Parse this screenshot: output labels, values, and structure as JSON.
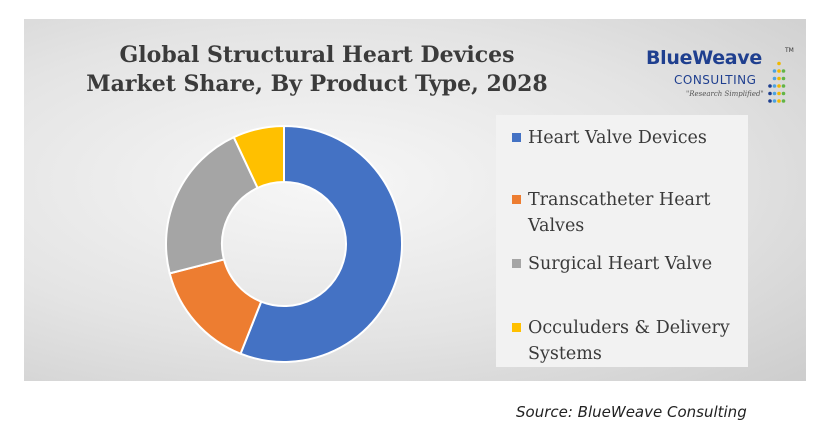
{
  "chart_data": {
    "type": "pie",
    "variant": "donut",
    "title_lines": [
      "Global Structural Heart Devices",
      "Market Share, By Product Type, 2028"
    ],
    "categories": [
      "Heart Valve Devices",
      "Transcatheter Heart Valves",
      "Surgical Heart Valve",
      "Occuluders & Delivery Systems"
    ],
    "values": [
      56,
      15,
      22,
      7
    ],
    "colors": [
      "#4472c4",
      "#ed7d31",
      "#a5a5a5",
      "#ffc000"
    ],
    "legend_position": "right"
  },
  "logo": {
    "name": "BlueWeave",
    "sub": "CONSULTING",
    "tagline": "\"Research Simplified\"",
    "tm": "TM",
    "dot_colors": [
      "#1f3f8f",
      "#4da3e0",
      "#f0b800",
      "#62b545"
    ]
  },
  "source": "Source: BlueWeave Consulting"
}
